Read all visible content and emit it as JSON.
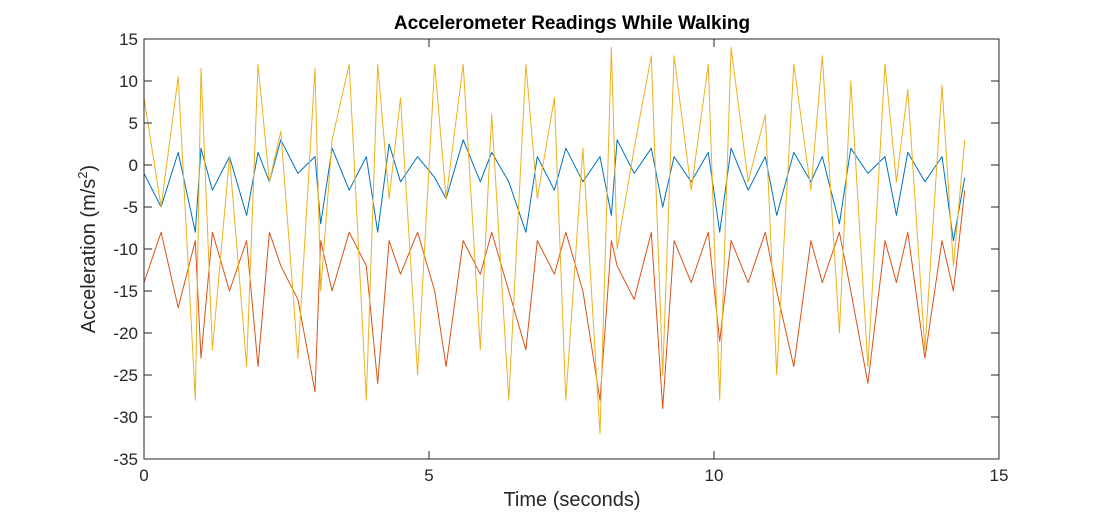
{
  "chart_data": {
    "type": "line",
    "title": "Accelerometer Readings While Walking",
    "xlabel": "Time (seconds)",
    "ylabel": "Acceleration (m/s²)",
    "ylabel_parts": {
      "main": "Acceleration (m/s",
      "sup": "2",
      "close": ")"
    },
    "xlim": [
      0,
      15
    ],
    "ylim": [
      -35,
      15
    ],
    "xticks": [
      0,
      5,
      10,
      15
    ],
    "yticks": [
      -35,
      -30,
      -25,
      -20,
      -15,
      -10,
      -5,
      0,
      5,
      10,
      15
    ],
    "grid": false,
    "legend": "none",
    "x": [
      0.0,
      0.3,
      0.6,
      0.9,
      1.0,
      1.2,
      1.5,
      1.8,
      2.0,
      2.2,
      2.4,
      2.7,
      3.0,
      3.1,
      3.3,
      3.6,
      3.9,
      4.1,
      4.3,
      4.5,
      4.8,
      5.1,
      5.3,
      5.6,
      5.9,
      6.1,
      6.4,
      6.7,
      6.9,
      7.2,
      7.4,
      7.7,
      8.0,
      8.2,
      8.3,
      8.6,
      8.9,
      9.1,
      9.3,
      9.6,
      9.9,
      10.1,
      10.3,
      10.6,
      10.9,
      11.1,
      11.4,
      11.7,
      11.9,
      12.2,
      12.4,
      12.7,
      13.0,
      13.2,
      13.4,
      13.7,
      14.0,
      14.2,
      14.4
    ],
    "series": [
      {
        "color": "#0072BD",
        "values": [
          -1.0,
          -5.0,
          1.5,
          -8.0,
          2.0,
          -3.0,
          1.0,
          -6.0,
          1.5,
          -2.0,
          3.0,
          -1.0,
          1.0,
          -7.0,
          2.0,
          -3.0,
          1.0,
          -8.0,
          2.5,
          -2.0,
          1.0,
          -1.5,
          -4.0,
          3.0,
          -2.0,
          1.5,
          -2.0,
          -8.0,
          1.0,
          -3.0,
          2.0,
          -2.0,
          1.0,
          -6.0,
          3.0,
          -1.0,
          2.0,
          -5.0,
          1.0,
          -2.0,
          1.5,
          -8.0,
          2.0,
          -3.0,
          1.0,
          -6.0,
          1.5,
          -2.0,
          1.0,
          -7.0,
          2.0,
          -1.0,
          1.0,
          -6.0,
          1.5,
          -2.0,
          1.0,
          -9.0,
          -1.5
        ]
      },
      {
        "color": "#D95319",
        "values": [
          -14.0,
          -8.0,
          -17.0,
          -9.0,
          -23.0,
          -8.0,
          -15.0,
          -9.0,
          -24.0,
          -8.0,
          -12.0,
          -16.0,
          -27.0,
          -9.0,
          -15.0,
          -8.0,
          -12.0,
          -26.0,
          -9.0,
          -13.0,
          -8.0,
          -15.0,
          -24.0,
          -9.0,
          -13.0,
          -8.0,
          -15.0,
          -22.0,
          -9.0,
          -13.0,
          -8.0,
          -15.0,
          -28.0,
          -9.0,
          -12.0,
          -16.0,
          -8.0,
          -29.0,
          -9.0,
          -14.0,
          -8.0,
          -21.0,
          -9.0,
          -14.0,
          -8.0,
          -15.0,
          -24.0,
          -9.0,
          -14.0,
          -8.0,
          -15.0,
          -26.0,
          -9.0,
          -14.0,
          -8.0,
          -23.0,
          -9.0,
          -15.0,
          -3.0
        ]
      },
      {
        "color": "#EDB120",
        "values": [
          8.0,
          -5.0,
          10.5,
          -28.0,
          11.5,
          -22.0,
          1.0,
          -24.0,
          12.0,
          -2.0,
          4.0,
          -23.0,
          11.5,
          -15.0,
          3.0,
          12.0,
          -28.0,
          12.0,
          -4.0,
          8.0,
          -25.0,
          12.0,
          -4.0,
          12.0,
          -22.0,
          6.0,
          -28.0,
          12.0,
          -4.0,
          8.0,
          -28.0,
          2.0,
          -32.0,
          14.0,
          -10.0,
          2.0,
          13.0,
          -25.0,
          13.0,
          -3.0,
          12.0,
          -28.0,
          14.0,
          -2.0,
          6.0,
          -25.0,
          12.0,
          -3.0,
          13.0,
          -20.0,
          10.0,
          -24.0,
          12.0,
          -2.0,
          9.0,
          -22.0,
          9.5,
          -12.0,
          3.0
        ]
      }
    ]
  }
}
